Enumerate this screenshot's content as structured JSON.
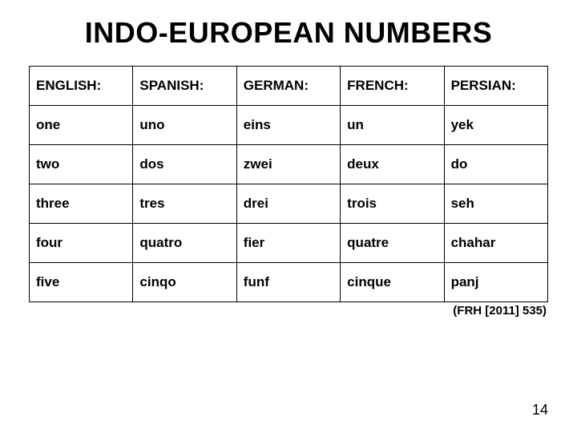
{
  "title": "INDO-EUROPEAN NUMBERS",
  "title_fontsize": 36,
  "title_color": "#000000",
  "table": {
    "columns": [
      "ENGLISH:",
      "SPANISH:",
      "GERMAN:",
      "FRENCH:",
      "PERSIAN:"
    ],
    "rows": [
      [
        "one",
        "uno",
        "eins",
        "un",
        "yek"
      ],
      [
        "two",
        "dos",
        "zwei",
        "deux",
        "do"
      ],
      [
        "three",
        "tres",
        "drei",
        "trois",
        "seh"
      ],
      [
        "four",
        "quatro",
        "fier",
        "quatre",
        "chahar"
      ],
      [
        "five",
        "cinqo",
        "funf",
        "cinque",
        "panj"
      ]
    ],
    "header_fontsize": 17,
    "cell_fontsize": 17,
    "cell_padding_tb": 14,
    "cell_padding_lr": 8,
    "border_color": "#000000",
    "col_widths_pct": [
      20,
      20,
      20,
      20,
      20
    ]
  },
  "citation": "(FRH [2011] 535)",
  "citation_fontsize": 15,
  "pagenum": "14",
  "pagenum_fontsize": 18,
  "background_color": "#ffffff",
  "text_color": "#000000"
}
